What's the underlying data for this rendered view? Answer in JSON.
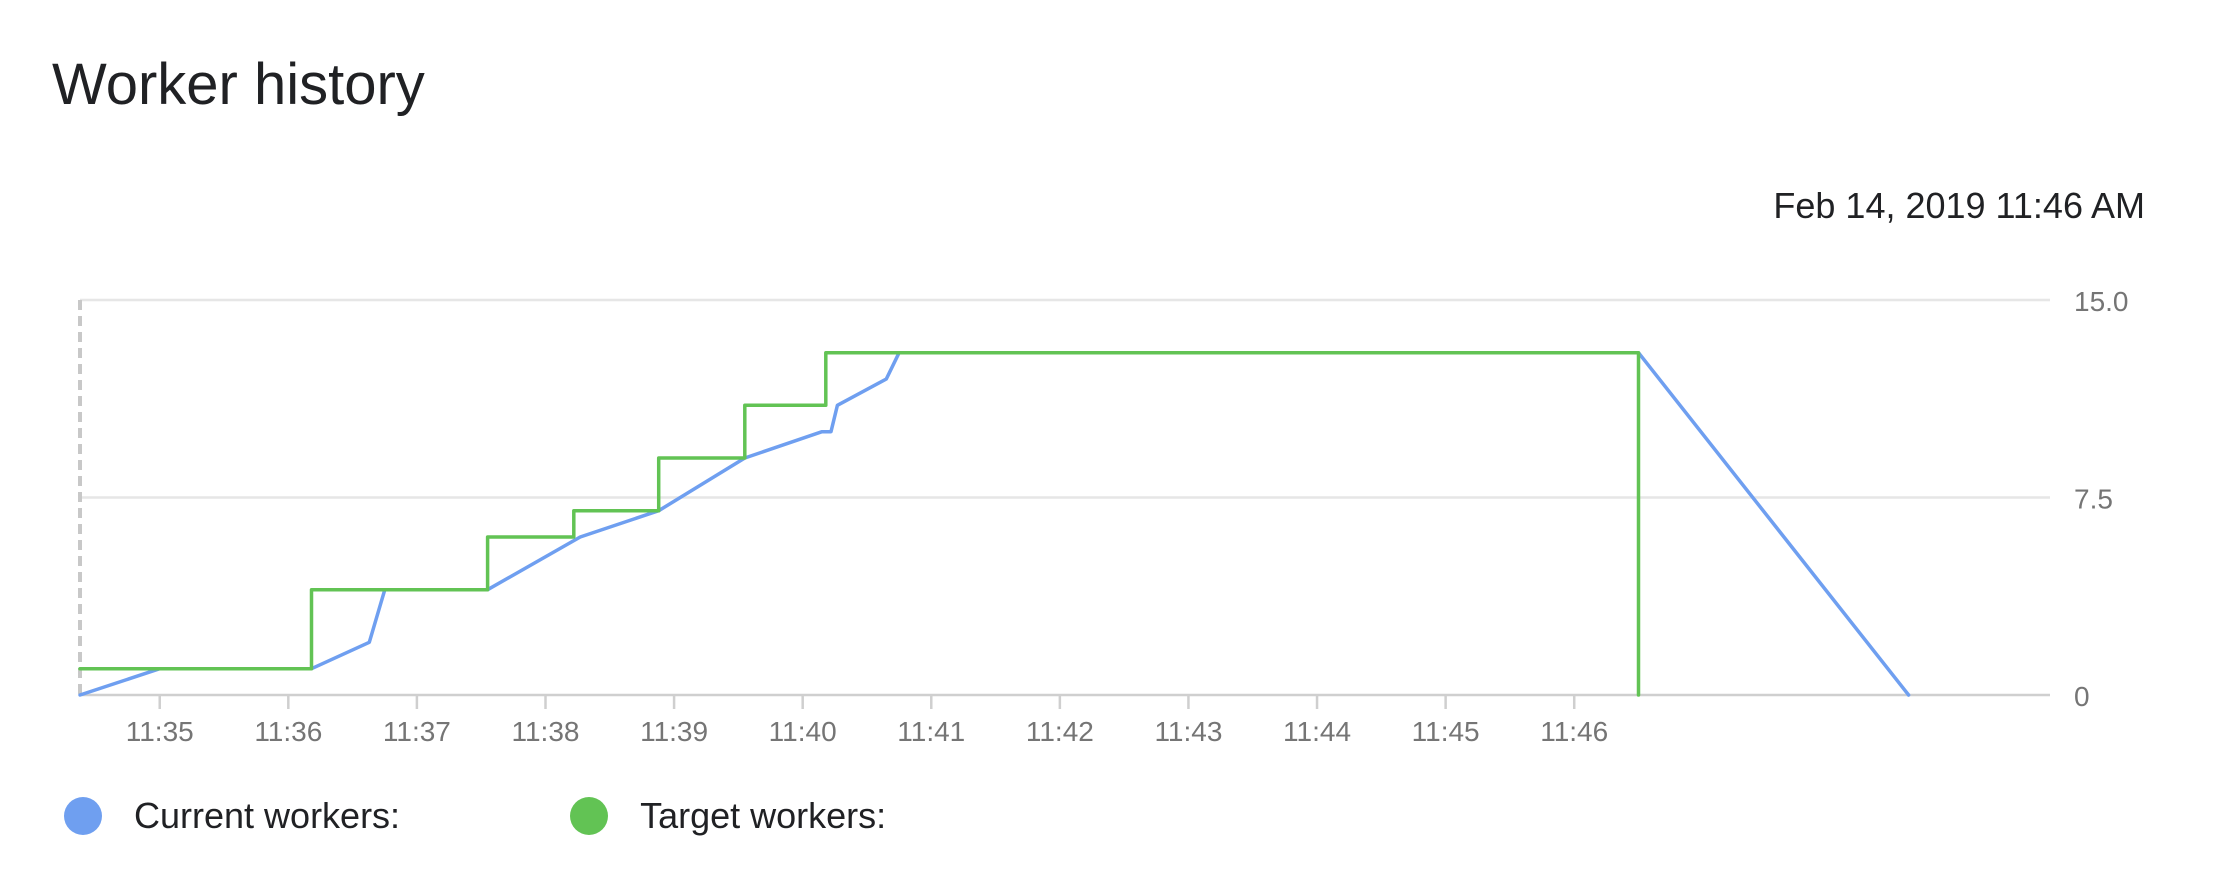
{
  "title": "Worker history",
  "timestamp": "Feb 14, 2019 11:46 AM",
  "colors": {
    "current": "#6f9ff0",
    "target": "#62c354",
    "grid": "#e6e6e6",
    "axis_text": "#757575"
  },
  "legend": [
    {
      "label": "Current workers:",
      "color": "#6f9ff0"
    },
    {
      "label": "Target workers:",
      "color": "#62c354"
    }
  ],
  "chart_data": {
    "type": "line",
    "title": "Worker history",
    "xlabel": "",
    "ylabel": "",
    "x_ticks": [
      "11:35",
      "11:36",
      "11:37",
      "11:38",
      "11:39",
      "11:40",
      "11:41",
      "11:42",
      "11:43",
      "11:44",
      "11:45",
      "11:46"
    ],
    "y_ticks": [
      "15.0",
      "7.5",
      "0"
    ],
    "ylim": [
      0,
      15
    ],
    "x_unit": "minutes past 11:00",
    "xlim": [
      34.38,
      49.7
    ],
    "y_axis_side": "right",
    "grid": true,
    "series": [
      {
        "name": "Current workers:",
        "color": "#6f9ff0",
        "step": false,
        "points": [
          [
            34.38,
            0
          ],
          [
            35.0,
            1
          ],
          [
            36.18,
            1
          ],
          [
            36.63,
            2
          ],
          [
            36.75,
            4
          ],
          [
            37.55,
            4
          ],
          [
            38.27,
            6
          ],
          [
            38.88,
            7
          ],
          [
            39.55,
            9
          ],
          [
            40.15,
            10
          ],
          [
            40.22,
            10
          ],
          [
            40.27,
            11
          ],
          [
            40.65,
            12
          ],
          [
            40.75,
            13
          ],
          [
            46.5,
            13
          ],
          [
            48.6,
            0
          ]
        ]
      },
      {
        "name": "Target workers:",
        "color": "#62c354",
        "step": true,
        "points": [
          [
            34.38,
            1
          ],
          [
            36.18,
            1
          ],
          [
            36.18,
            4
          ],
          [
            37.55,
            4
          ],
          [
            37.55,
            6
          ],
          [
            38.22,
            6
          ],
          [
            38.22,
            7
          ],
          [
            38.88,
            7
          ],
          [
            38.88,
            9
          ],
          [
            39.55,
            9
          ],
          [
            39.55,
            11
          ],
          [
            40.18,
            11
          ],
          [
            40.18,
            13
          ],
          [
            46.5,
            13
          ],
          [
            46.5,
            0
          ]
        ]
      }
    ],
    "legend_position": "bottom-left"
  }
}
